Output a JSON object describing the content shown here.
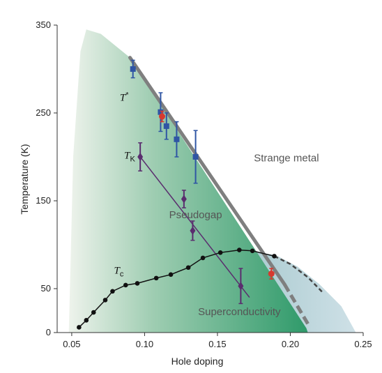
{
  "chart_data": {
    "type": "scatter",
    "title": "",
    "xlabel": "Hole doping",
    "ylabel": "Temperature (K)",
    "xlim": [
      0.04,
      0.25
    ],
    "ylim": [
      0,
      350
    ],
    "xticks": [
      0.05,
      0.1,
      0.15,
      0.2,
      0.25
    ],
    "xtick_labels": [
      "0.05",
      "0.10",
      "0.15",
      "0.20",
      "0.25"
    ],
    "yticks": [
      0,
      50,
      150,
      250,
      350
    ],
    "ytick_labels": [
      "0",
      "50",
      "150",
      "250",
      "350"
    ],
    "grid": false,
    "regions": {
      "strange_metal": {
        "label": "Strange metal",
        "x": 0.175,
        "y": 195
      },
      "pseudogap": {
        "label": "Pseudogap",
        "x": 0.135,
        "y": 130
      },
      "superconductivity": {
        "label": "Superconductivity",
        "x": 0.165,
        "y": 20
      }
    },
    "series": [
      {
        "name": "T*",
        "label_main": "T",
        "label_sub": "*",
        "label_pos": {
          "x": 0.083,
          "y": 264
        },
        "marker": "square",
        "color": "#2f55a4",
        "points": [
          {
            "x": 0.092,
            "y": 300,
            "err": 10
          },
          {
            "x": 0.111,
            "y": 251,
            "err": 22
          },
          {
            "x": 0.115,
            "y": 235,
            "err": 15
          },
          {
            "x": 0.122,
            "y": 220,
            "err": 20
          },
          {
            "x": 0.135,
            "y": 200,
            "err": 30
          }
        ]
      },
      {
        "name": "T*-red",
        "marker": "circle",
        "color": "#d63a2f",
        "points": [
          {
            "x": 0.112,
            "y": 246,
            "err": 6
          },
          {
            "x": 0.187,
            "y": 67,
            "err": 6
          }
        ]
      },
      {
        "name": "TK",
        "label_main": "T",
        "label_sub": "K",
        "label_pos": {
          "x": 0.086,
          "y": 198
        },
        "marker": "diamond",
        "color": "#5a2d6e",
        "points": [
          {
            "x": 0.097,
            "y": 200,
            "err": 16
          },
          {
            "x": 0.127,
            "y": 152,
            "err": 10
          },
          {
            "x": 0.133,
            "y": 116,
            "err": 11
          },
          {
            "x": 0.166,
            "y": 53,
            "err": 20
          }
        ],
        "fit_line": [
          [
            0.097,
            200
          ],
          [
            0.172,
            40
          ]
        ]
      },
      {
        "name": "Tc",
        "label_main": "T",
        "label_sub": "c",
        "label_pos": {
          "x": 0.079,
          "y": 67
        },
        "marker": "circle",
        "color": "#111111",
        "points": [
          {
            "x": 0.055,
            "y": 6
          },
          {
            "x": 0.06,
            "y": 14
          },
          {
            "x": 0.065,
            "y": 23
          },
          {
            "x": 0.073,
            "y": 37
          },
          {
            "x": 0.078,
            "y": 47
          },
          {
            "x": 0.087,
            "y": 54
          },
          {
            "x": 0.095,
            "y": 56
          },
          {
            "x": 0.108,
            "y": 62
          },
          {
            "x": 0.118,
            "y": 66
          },
          {
            "x": 0.13,
            "y": 74
          },
          {
            "x": 0.14,
            "y": 85
          },
          {
            "x": 0.152,
            "y": 91
          },
          {
            "x": 0.165,
            "y": 94
          },
          {
            "x": 0.174,
            "y": 93
          },
          {
            "x": 0.189,
            "y": 87
          }
        ]
      }
    ],
    "boundary_lines": {
      "tstar": {
        "color": "#7f7f7f",
        "solid": [
          [
            0.09,
            313
          ],
          [
            0.196,
            55
          ]
        ],
        "dashed": [
          [
            0.196,
            55
          ],
          [
            0.212,
            10
          ]
        ]
      },
      "dome_dashed": {
        "color": "#444444",
        "points": [
          [
            0.189,
            87
          ],
          [
            0.2,
            78
          ],
          [
            0.212,
            63
          ],
          [
            0.222,
            46
          ]
        ]
      }
    },
    "shading": {
      "green_outline": [
        [
          0.048,
          0
        ],
        [
          0.051,
          200
        ],
        [
          0.056,
          320
        ],
        [
          0.06,
          345
        ],
        [
          0.07,
          340
        ],
        [
          0.09,
          313
        ],
        [
          0.211,
          5
        ],
        [
          0.212,
          0
        ]
      ],
      "blue_dome": [
        [
          0.165,
          95
        ],
        [
          0.19,
          88
        ],
        [
          0.205,
          75
        ],
        [
          0.22,
          55
        ],
        [
          0.235,
          30
        ],
        [
          0.245,
          0
        ],
        [
          0.17,
          0
        ]
      ],
      "colors": {
        "green_light": "#e8efe6",
        "green_dark": "#2f9a6a",
        "blue": "#a9c9d3"
      }
    }
  }
}
